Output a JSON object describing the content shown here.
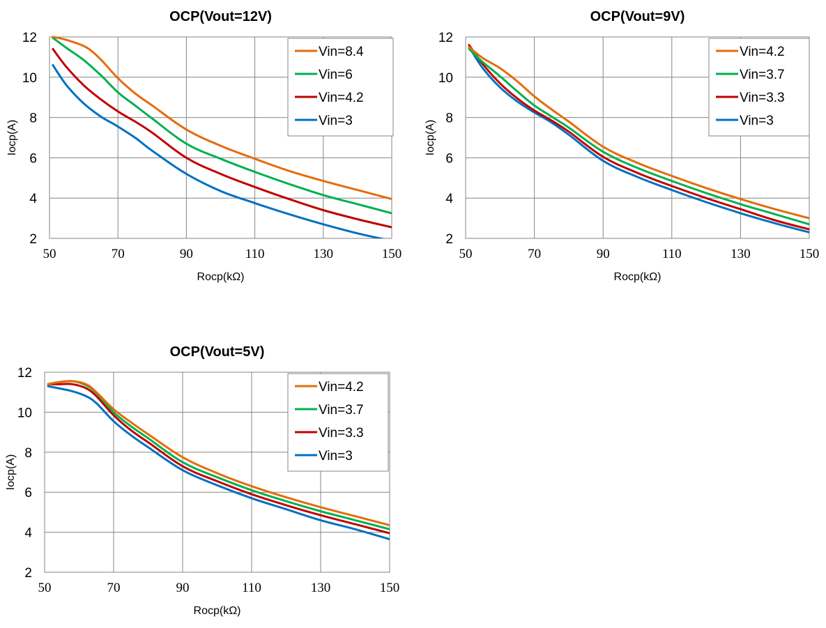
{
  "chart_data": [
    {
      "type": "line",
      "title": "OCP(Vout=12V)",
      "xlabel": "Rocp(kΩ)",
      "ylabel": "Iocp(A)",
      "xlim": [
        50,
        150
      ],
      "ylim": [
        2,
        12
      ],
      "xticks": [
        "50",
        "70",
        "90",
        "110",
        "130",
        "150"
      ],
      "yticks": [
        "2",
        "4",
        "6",
        "8",
        "10",
        "12"
      ],
      "grid": true,
      "legend_position": "top-right",
      "series": [
        {
          "name": "Vin=8.4",
          "color": "#E46C0A",
          "x": [
            51,
            55,
            60,
            63,
            66,
            70,
            75,
            80,
            90,
            100,
            110,
            120,
            130,
            140,
            150
          ],
          "y": [
            12.0,
            11.85,
            11.55,
            11.2,
            10.7,
            9.95,
            9.2,
            8.6,
            7.4,
            6.6,
            5.95,
            5.35,
            4.85,
            4.4,
            3.95
          ]
        },
        {
          "name": "Vin=6",
          "color": "#00B050",
          "x": [
            51,
            55,
            60,
            65,
            70,
            75,
            80,
            90,
            100,
            110,
            120,
            130,
            140,
            150
          ],
          "y": [
            11.95,
            11.45,
            10.85,
            10.1,
            9.25,
            8.6,
            7.95,
            6.7,
            5.95,
            5.3,
            4.7,
            4.15,
            3.7,
            3.25
          ]
        },
        {
          "name": "Vin=4.2",
          "color": "#C00000",
          "x": [
            51,
            55,
            60,
            65,
            70,
            75,
            80,
            90,
            100,
            110,
            120,
            130,
            140,
            150
          ],
          "y": [
            11.4,
            10.5,
            9.6,
            8.9,
            8.3,
            7.8,
            7.25,
            6.0,
            5.2,
            4.55,
            3.95,
            3.4,
            2.95,
            2.55
          ]
        },
        {
          "name": "Vin=3",
          "color": "#0070C0",
          "x": [
            51,
            55,
            60,
            65,
            70,
            75,
            80,
            90,
            100,
            110,
            120,
            130,
            140,
            148
          ],
          "y": [
            10.6,
            9.6,
            8.7,
            8.05,
            7.55,
            7.0,
            6.35,
            5.2,
            4.35,
            3.75,
            3.2,
            2.7,
            2.25,
            1.95
          ]
        }
      ]
    },
    {
      "type": "line",
      "title": "OCP(Vout=9V)",
      "xlabel": "Rocp(kΩ)",
      "ylabel": "Iocp(A)",
      "xlim": [
        50,
        150
      ],
      "ylim": [
        2,
        12
      ],
      "xticks": [
        "50",
        "70",
        "90",
        "110",
        "130",
        "150"
      ],
      "yticks": [
        "2",
        "4",
        "6",
        "8",
        "10",
        "12"
      ],
      "grid": true,
      "legend_position": "top-right",
      "series": [
        {
          "name": "Vin=4.2",
          "color": "#E46C0A",
          "x": [
            51,
            55,
            60,
            65,
            70,
            75,
            80,
            90,
            100,
            110,
            120,
            130,
            140,
            150
          ],
          "y": [
            11.5,
            10.95,
            10.45,
            9.8,
            9.05,
            8.4,
            7.8,
            6.55,
            5.75,
            5.1,
            4.5,
            3.95,
            3.45,
            3.0
          ]
        },
        {
          "name": "Vin=3.7",
          "color": "#00B050",
          "x": [
            51,
            55,
            60,
            65,
            70,
            75,
            80,
            90,
            100,
            110,
            120,
            130,
            140,
            150
          ],
          "y": [
            11.4,
            10.75,
            10.05,
            9.3,
            8.6,
            8.05,
            7.5,
            6.3,
            5.5,
            4.85,
            4.25,
            3.7,
            3.2,
            2.7
          ]
        },
        {
          "name": "Vin=3.3",
          "color": "#C00000",
          "x": [
            51,
            55,
            60,
            65,
            70,
            75,
            80,
            90,
            100,
            110,
            120,
            130,
            140,
            150
          ],
          "y": [
            11.6,
            10.65,
            9.7,
            8.95,
            8.35,
            7.85,
            7.3,
            6.05,
            5.25,
            4.6,
            4.0,
            3.45,
            2.9,
            2.45
          ]
        },
        {
          "name": "Vin=3",
          "color": "#0070C0",
          "x": [
            51,
            55,
            60,
            65,
            70,
            75,
            80,
            90,
            100,
            110,
            120,
            130,
            140,
            150
          ],
          "y": [
            11.5,
            10.45,
            9.5,
            8.8,
            8.25,
            7.75,
            7.15,
            5.85,
            5.05,
            4.4,
            3.8,
            3.25,
            2.75,
            2.3
          ]
        }
      ]
    },
    {
      "type": "line",
      "title": "OCP(Vout=5V)",
      "xlabel": "Rocp(kΩ)",
      "ylabel": "Iocp(A)",
      "xlim": [
        50,
        150
      ],
      "ylim": [
        2,
        12
      ],
      "xticks": [
        "50",
        "70",
        "90",
        "110",
        "130",
        "150"
      ],
      "yticks": [
        "2",
        "4",
        "6",
        "8",
        "10",
        "12"
      ],
      "grid": true,
      "legend_position": "top-right",
      "series": [
        {
          "name": "Vin=4.2",
          "color": "#E46C0A",
          "x": [
            51,
            54,
            58,
            62,
            65,
            70,
            75,
            80,
            90,
            100,
            110,
            120,
            130,
            140,
            150
          ],
          "y": [
            11.4,
            11.5,
            11.55,
            11.4,
            11.0,
            10.15,
            9.5,
            8.9,
            7.75,
            6.95,
            6.3,
            5.75,
            5.25,
            4.8,
            4.35
          ]
        },
        {
          "name": "Vin=3.7",
          "color": "#00B050",
          "x": [
            51,
            54,
            58,
            62,
            65,
            70,
            75,
            80,
            90,
            100,
            110,
            120,
            130,
            140,
            150
          ],
          "y": [
            11.4,
            11.5,
            11.55,
            11.35,
            10.95,
            10.0,
            9.3,
            8.7,
            7.5,
            6.75,
            6.1,
            5.55,
            5.05,
            4.6,
            4.15
          ]
        },
        {
          "name": "Vin=3.3",
          "color": "#C00000",
          "x": [
            51,
            54,
            58,
            62,
            65,
            70,
            75,
            80,
            90,
            100,
            110,
            120,
            130,
            140,
            150
          ],
          "y": [
            11.4,
            11.4,
            11.4,
            11.2,
            10.8,
            9.85,
            9.1,
            8.5,
            7.3,
            6.55,
            5.9,
            5.35,
            4.85,
            4.4,
            3.95
          ]
        },
        {
          "name": "Vin=3",
          "color": "#0070C0",
          "x": [
            51,
            54,
            58,
            62,
            65,
            70,
            75,
            80,
            90,
            100,
            110,
            120,
            130,
            140,
            150
          ],
          "y": [
            11.3,
            11.2,
            11.05,
            10.8,
            10.45,
            9.55,
            8.85,
            8.25,
            7.1,
            6.35,
            5.7,
            5.15,
            4.6,
            4.15,
            3.65
          ]
        }
      ]
    }
  ]
}
